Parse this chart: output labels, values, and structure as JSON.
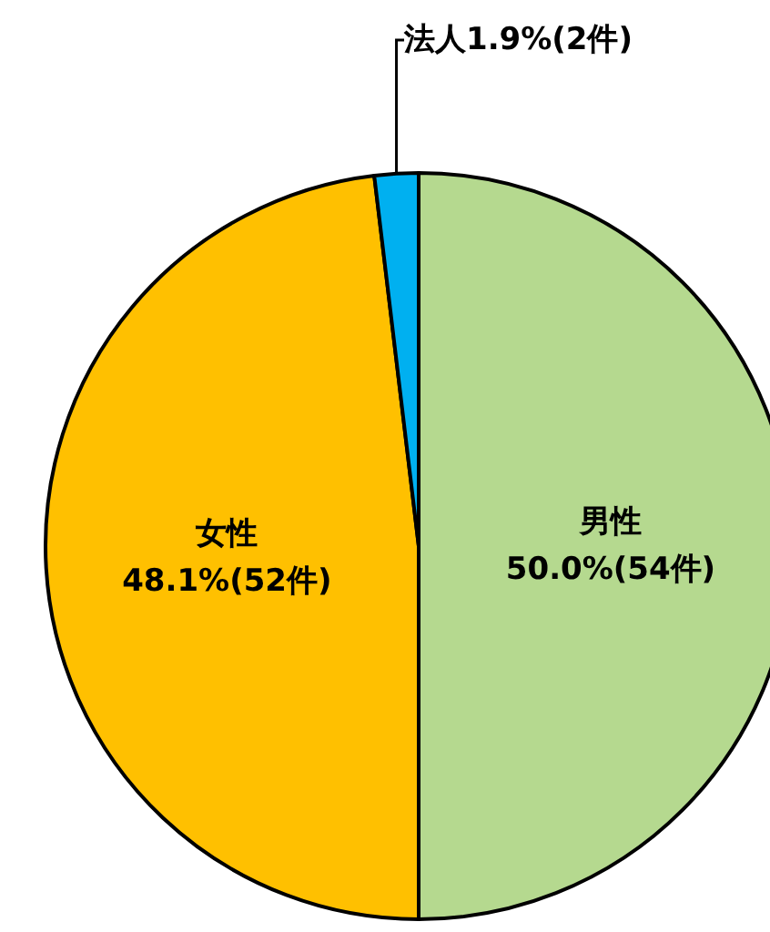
{
  "chart_data": {
    "type": "pie",
    "categories": [
      "男性",
      "女性",
      "法人"
    ],
    "values": [
      50.0,
      48.1,
      1.9
    ],
    "value_labels": [
      "50.0%(54件)",
      "48.1%(52件)",
      "1.9%(2件)"
    ],
    "colors": [
      "#b5d98f",
      "#ffc000",
      "#00b0f0"
    ],
    "legend": false
  }
}
